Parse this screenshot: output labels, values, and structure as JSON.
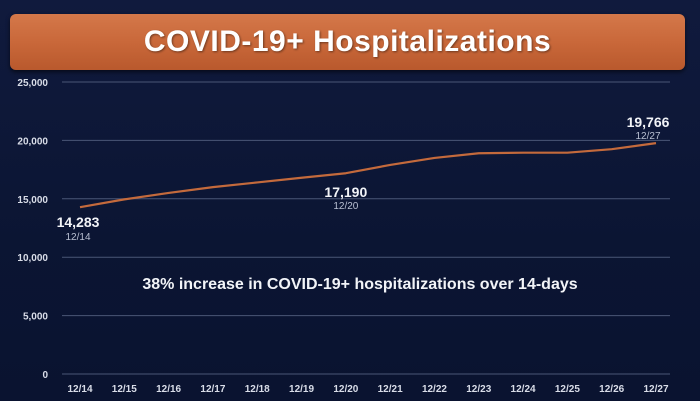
{
  "banner": {
    "title": "COVID-19+ Hospitalizations"
  },
  "annotation": "38% increase in COVID-19+ hospitalizations over 14-days",
  "chart_data": {
    "type": "line",
    "title": "COVID-19+ Hospitalizations",
    "xlabel": "",
    "ylabel": "",
    "categories": [
      "12/14",
      "12/15",
      "12/16",
      "12/17",
      "12/18",
      "12/19",
      "12/20",
      "12/21",
      "12/22",
      "12/23",
      "12/24",
      "12/25",
      "12/26",
      "12/27"
    ],
    "series": [
      {
        "values": [
          14283,
          14950,
          15500,
          16000,
          16400,
          16800,
          17190,
          17900,
          18500,
          18900,
          18950,
          18950,
          19250,
          19766
        ]
      }
    ],
    "ylim": [
      0,
      25000
    ],
    "yticks": [
      0,
      5000,
      10000,
      15000,
      20000,
      25000
    ],
    "ytick_labels": [
      "0",
      "5,000",
      "10,000",
      "15,000",
      "20,000",
      "25,000"
    ],
    "grid": true,
    "legend": "none",
    "colors": {
      "line": "#c46a3c",
      "background": "#0d1736",
      "banner": "#c9683a"
    },
    "data_labels": [
      {
        "value_label": "14,283",
        "date_label": "12/14",
        "index": 0
      },
      {
        "value_label": "17,190",
        "date_label": "12/20",
        "index": 6
      },
      {
        "value_label": "19,766",
        "date_label": "12/27",
        "index": 13
      }
    ]
  }
}
